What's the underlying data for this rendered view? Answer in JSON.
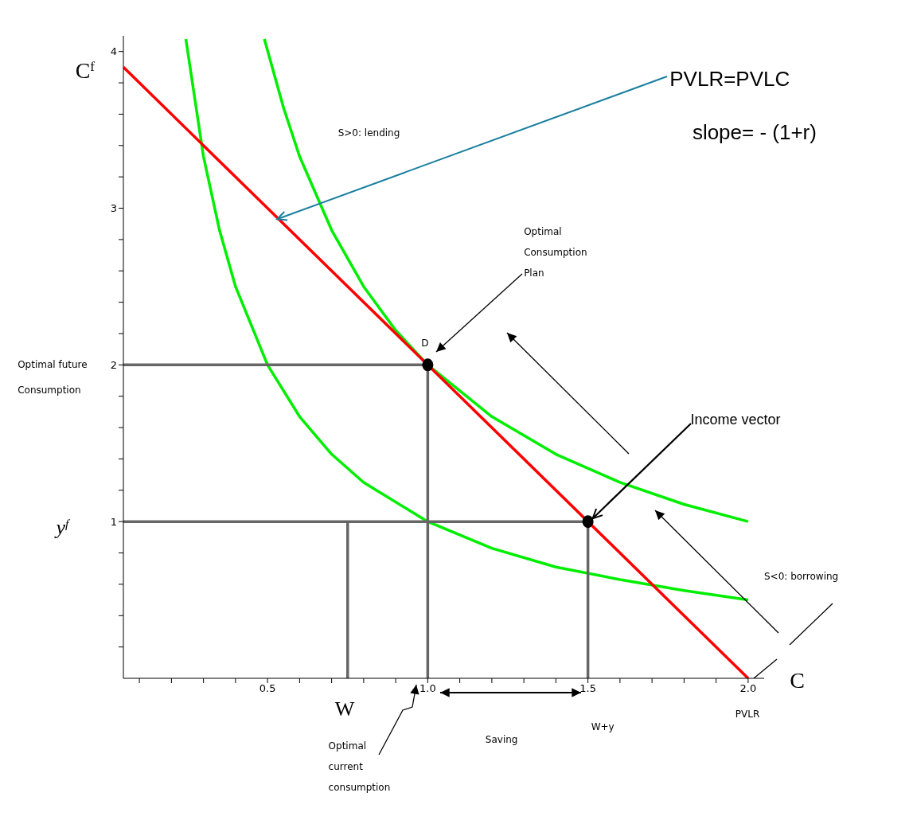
{
  "chart_data": {
    "type": "line",
    "ylabel": "C$^{f}$",
    "xlabel": "C",
    "xlim": [
      0.05,
      2.05
    ],
    "ylim": [
      0,
      4.1
    ],
    "xticks": [
      {
        "value": 0.1,
        "label": null
      },
      {
        "value": 0.2,
        "label": null
      },
      {
        "value": 0.3,
        "label": null
      },
      {
        "value": 0.4,
        "label": null
      },
      0.5,
      {
        "value": 0.6,
        "label": null
      },
      {
        "value": 0.7,
        "label": null
      },
      {
        "value": 0.8,
        "label": null
      },
      {
        "value": 0.9,
        "label": null
      },
      {
        "value": 1,
        "label": "1.0"
      },
      {
        "value": 1.1,
        "label": null
      },
      {
        "value": 1.2,
        "label": null
      },
      {
        "value": 1.3,
        "label": null
      },
      {
        "value": 1.4,
        "label": null
      },
      1.5,
      {
        "value": 1.6,
        "label": null
      },
      {
        "value": 1.7,
        "label": null
      },
      {
        "value": 1.8,
        "label": null
      },
      {
        "value": 1.9,
        "label": null
      },
      {
        "value": 2,
        "label": "2.0"
      }
    ],
    "yticks": [
      {
        "value": 0.2,
        "label": null
      },
      {
        "value": 0.4,
        "label": null
      },
      {
        "value": 0.6,
        "label": null
      },
      {
        "value": 0.8,
        "label": null
      },
      1,
      {
        "value": 1.2,
        "label": null
      },
      {
        "value": 1.4,
        "label": null
      },
      {
        "value": 1.6,
        "label": null
      },
      {
        "value": 1.8,
        "label": null
      },
      2,
      {
        "value": 2.2,
        "label": null
      },
      {
        "value": 2.4,
        "label": null
      },
      {
        "value": 2.6,
        "label": null
      },
      {
        "value": 2.8,
        "label": null
      },
      3,
      {
        "value": 3.2,
        "label": null
      },
      {
        "value": 3.4,
        "label": null
      },
      {
        "value": 3.6,
        "label": null
      },
      {
        "value": 3.8,
        "label": null
      },
      4
    ],
    "marker": "none",
    "line_style": "solid",
    "series": [
      {
        "color": "#00ee00",
        "x": [
          0.245,
          0.3,
          0.35,
          0.4,
          0.5,
          0.6,
          0.7,
          0.8,
          1,
          1.2,
          1.4,
          1.6,
          1.8,
          2
        ],
        "values": [
          4.08,
          3.33,
          2.86,
          2.5,
          2,
          1.67,
          1.43,
          1.25,
          1,
          0.83,
          0.71,
          0.63,
          0.56,
          0.5
        ]
      },
      {
        "color": "#00ee00",
        "x": [
          0.49,
          0.55,
          0.6,
          0.7,
          0.8,
          0.9,
          1,
          1.2,
          1.4,
          1.6,
          1.8,
          2
        ],
        "values": [
          4.08,
          3.64,
          3.33,
          2.86,
          2.5,
          2.22,
          2,
          1.67,
          1.43,
          1.25,
          1.11,
          1
        ]
      },
      {
        "color": "#666666",
        "x": [
          0.05,
          1,
          1
        ],
        "values": [
          2,
          2,
          0
        ]
      },
      {
        "color": "#666666",
        "x": [
          0.05,
          1.5,
          1.5
        ],
        "values": [
          1,
          1,
          0
        ]
      },
      {
        "color": "#666666",
        "x": [
          0.75,
          0.75
        ],
        "values": [
          0,
          1
        ]
      },
      {
        "color": "#ff0000",
        "x": [
          0.05,
          2
        ],
        "values": [
          3.9,
          0
        ]
      },
      {
        "type": "scatter",
        "marker": "circle",
        "color": "#000000",
        "x": [
          1,
          1.5
        ],
        "values": [
          2,
          1
        ]
      }
    ],
    "annotations": [
      {
        "text": "PVLR=PVLC",
        "x": 0.53,
        "y": 2.93
      },
      "slope= - (1+r)",
      "S>0: lending",
      "Optimal\nConsumption\nPlan",
      "D",
      {
        "text": "Income vector",
        "x": 1.5,
        "y": 1
      },
      "S<0: borrowing",
      "Optimal future\nConsumption",
      "y$^{f}$",
      "W",
      "Optimal\ncurrent\nconsumption",
      "Saving",
      "W+y",
      "PVLR"
    ]
  }
}
